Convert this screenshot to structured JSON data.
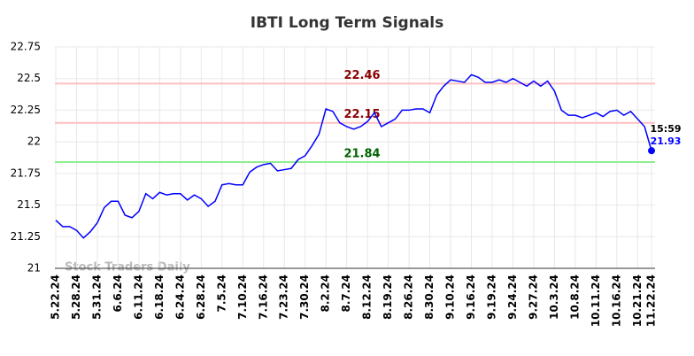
{
  "chart_data": {
    "type": "line",
    "title": "IBTI Long Term Signals",
    "categories": [
      "5.22.24",
      null,
      null,
      "5.28.24",
      null,
      null,
      "5.31.24",
      null,
      null,
      "6.6.24",
      null,
      null,
      "6.11.24",
      null,
      null,
      "6.18.24",
      null,
      null,
      "6.24.24",
      null,
      null,
      "6.28.24",
      null,
      null,
      "7.5.24",
      null,
      null,
      "7.10.24",
      null,
      null,
      "7.16.24",
      null,
      null,
      "7.23.24",
      null,
      null,
      "7.30.24",
      null,
      null,
      "8.2.24",
      null,
      null,
      "8.7.24",
      null,
      null,
      "8.12.24",
      null,
      null,
      "8.19.24",
      null,
      null,
      "8.26.24",
      null,
      null,
      "8.30.24",
      null,
      null,
      "9.10.24",
      null,
      null,
      "9.16.24",
      null,
      null,
      "9.19.24",
      null,
      null,
      "9.24.24",
      null,
      null,
      "9.27.24",
      null,
      null,
      "10.3.24",
      null,
      null,
      "10.8.24",
      null,
      null,
      "10.11.24",
      null,
      null,
      "10.16.24",
      null,
      null,
      "10.21.24",
      null,
      "11.22.24"
    ],
    "values": [
      21.38,
      21.33,
      21.33,
      21.3,
      21.24,
      21.29,
      21.36,
      21.48,
      21.53,
      21.53,
      21.42,
      21.4,
      21.45,
      21.59,
      21.55,
      21.6,
      21.58,
      21.59,
      21.59,
      21.54,
      21.58,
      21.55,
      21.49,
      21.53,
      21.66,
      21.67,
      21.66,
      21.66,
      21.76,
      21.8,
      21.82,
      21.83,
      21.77,
      21.78,
      21.79,
      21.86,
      21.89,
      21.97,
      22.06,
      22.26,
      22.24,
      22.15,
      22.12,
      22.1,
      22.12,
      22.16,
      22.23,
      22.12,
      22.15,
      22.18,
      22.25,
      22.25,
      22.26,
      22.26,
      22.23,
      22.37,
      22.44,
      22.49,
      22.48,
      22.47,
      22.53,
      22.51,
      22.47,
      22.47,
      22.49,
      22.47,
      22.5,
      22.47,
      22.44,
      22.48,
      22.44,
      22.48,
      22.4,
      22.25,
      22.21,
      22.21,
      22.19,
      22.21,
      22.23,
      22.2,
      22.24,
      22.25,
      22.21,
      22.24,
      22.18,
      22.12,
      21.93
    ],
    "color": "#0000ff",
    "ylim": [
      21,
      22.75
    ],
    "yticks": [
      21,
      21.25,
      21.5,
      21.75,
      22,
      22.25,
      22.5,
      22.75
    ],
    "grid": true,
    "hlines": [
      {
        "value": 22.46,
        "color": "#ffc0c0",
        "label_color": "#8b0000"
      },
      {
        "value": 22.15,
        "color": "#ffc0c0",
        "label_color": "#8b0000"
      },
      {
        "value": 21.84,
        "color": "#90ee90",
        "label_color": "#006400"
      }
    ],
    "last_time": "15:59",
    "watermark": "Stock Traders Daily"
  }
}
